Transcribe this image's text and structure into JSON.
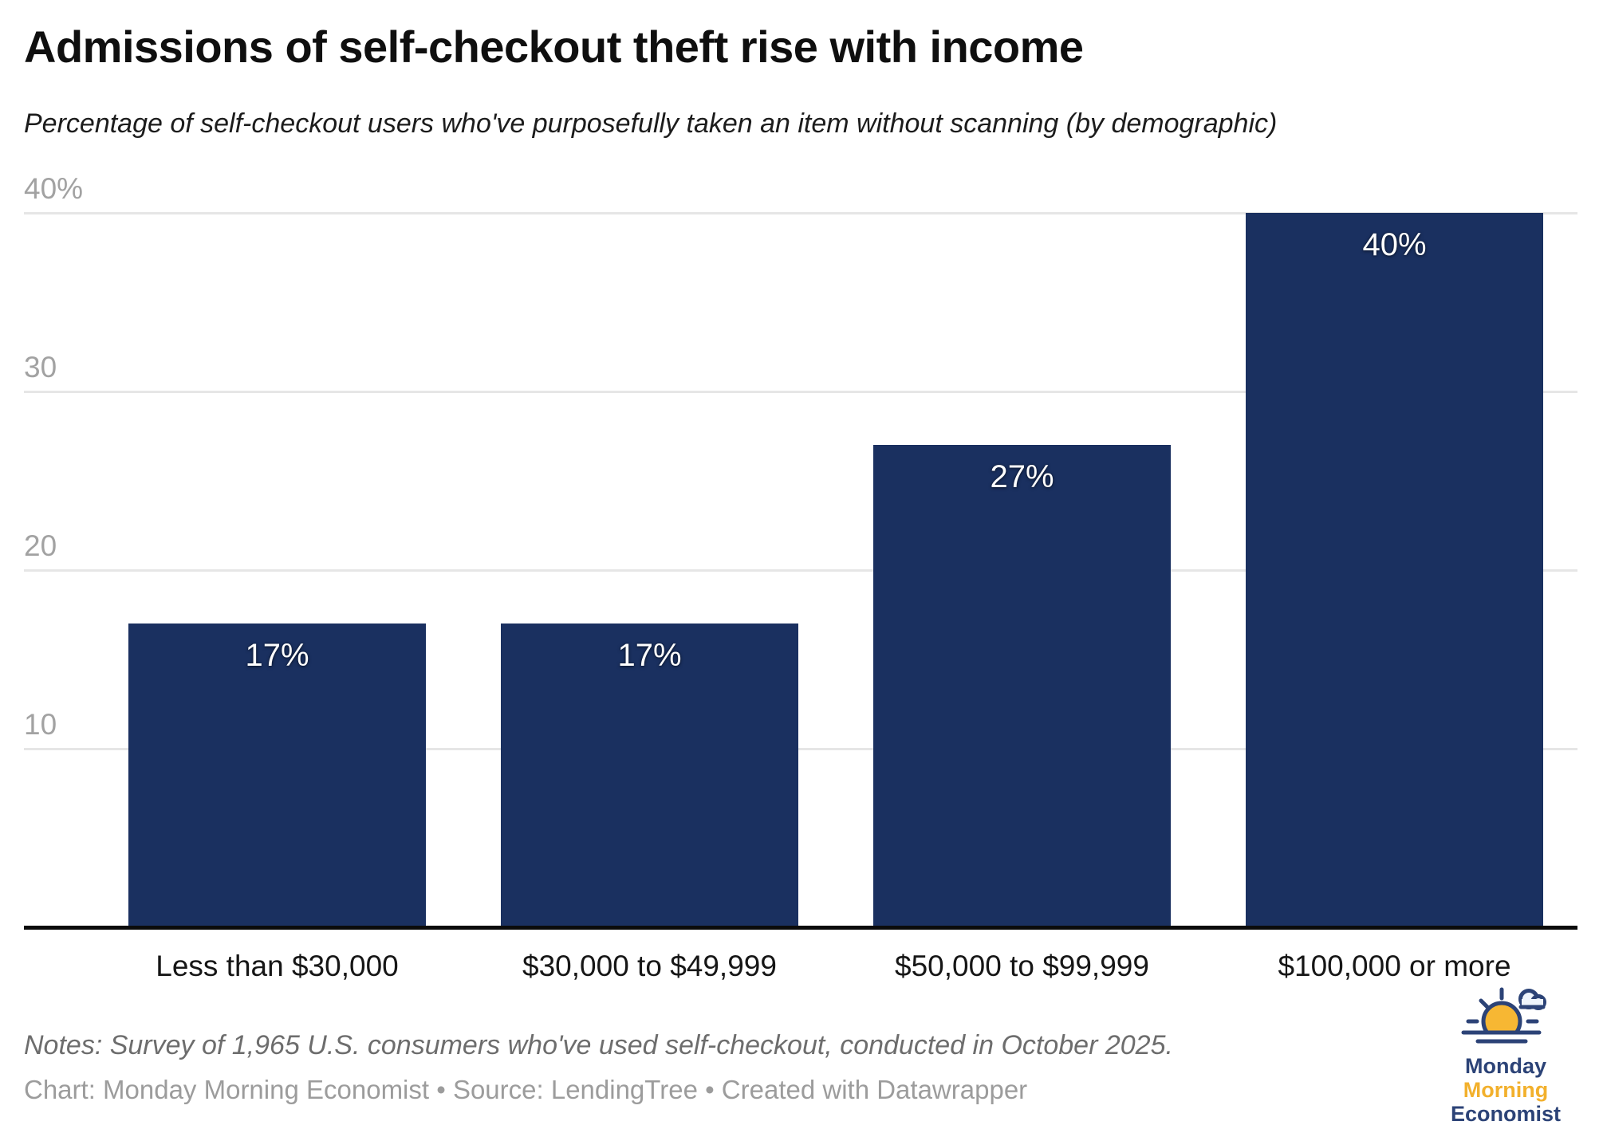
{
  "header": {
    "title": "Admissions of self-checkout theft rise with income",
    "subtitle": "Percentage of self-checkout users who've purposefully taken an item without scanning (by demographic)"
  },
  "chart_data": {
    "type": "bar",
    "title": "Admissions of self-checkout theft rise with income",
    "subtitle": "Percentage of self-checkout users who've purposefully taken an item without scanning (by demographic)",
    "categories": [
      "Less than $30,000",
      "$30,000 to $49,999",
      "$50,000 to $99,999",
      "$100,000 or more"
    ],
    "values": [
      17,
      17,
      27,
      40
    ],
    "value_labels": [
      "17%",
      "17%",
      "27%",
      "40%"
    ],
    "xlabel": "",
    "ylabel": "",
    "ylim": [
      0,
      40
    ],
    "yticks": [
      {
        "value": 40,
        "label": "40%"
      },
      {
        "value": 30,
        "label": "30"
      },
      {
        "value": 20,
        "label": "20"
      },
      {
        "value": 10,
        "label": "10"
      }
    ],
    "grid": "horizontal gridlines, labels above lines, left-aligned",
    "legend": "none",
    "bar_color": "#1a3060"
  },
  "footer": {
    "notes": "Notes: Survey of 1,965 U.S. consumers who've used self-checkout, conducted in October 2025.",
    "credit": "Chart: Monday Morning Economist • Source: LendingTree • Created with Datawrapper"
  },
  "logo": {
    "line1": "Monday",
    "line2": "Morning",
    "line3": "Economist",
    "navy": "#2c4377",
    "gold": "#f2b02c",
    "sun_fill": "#f7b733",
    "cloud_fill": "#eef4fb"
  },
  "colors": {
    "bar": "#1a3060",
    "gridline": "#e6e6e6",
    "axis_line": "#0b0b0b",
    "tick_label": "#a2a2a2",
    "category_label": "#161616",
    "value_label": "#ffffff"
  }
}
